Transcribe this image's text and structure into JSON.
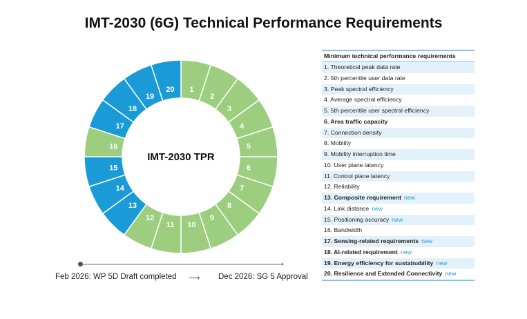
{
  "title": "IMT-2030 (6G) Technical Performance Requirements",
  "donut": {
    "center_label": "IMT-2030 TPR",
    "colors": {
      "existing": "#9dcd7e",
      "new": "#1a9bd7"
    },
    "segments": [
      {
        "n": "1",
        "new": false
      },
      {
        "n": "2",
        "new": false
      },
      {
        "n": "3",
        "new": false
      },
      {
        "n": "4",
        "new": false
      },
      {
        "n": "5",
        "new": false
      },
      {
        "n": "6",
        "new": false
      },
      {
        "n": "7",
        "new": false
      },
      {
        "n": "8",
        "new": false
      },
      {
        "n": "9",
        "new": false
      },
      {
        "n": "10",
        "new": false
      },
      {
        "n": "11",
        "new": false
      },
      {
        "n": "12",
        "new": false
      },
      {
        "n": "13",
        "new": true
      },
      {
        "n": "14",
        "new": true
      },
      {
        "n": "15",
        "new": true
      },
      {
        "n": "16",
        "new": false
      },
      {
        "n": "17",
        "new": true
      },
      {
        "n": "18",
        "new": true
      },
      {
        "n": "19",
        "new": true
      },
      {
        "n": "20",
        "new": true
      }
    ]
  },
  "timeline": {
    "start": "Feb 2026: WP 5D Draft completed",
    "arrow": "⟶",
    "end": "Dec 2026: SG 5 Approval"
  },
  "table": {
    "header": "Minimum technical performance requirements",
    "new_label": "new",
    "rows": [
      {
        "text": "1. Theoretical peak data rate",
        "bold": false,
        "new": false
      },
      {
        "text": "2. 5th percentile user data rate",
        "bold": false,
        "new": false
      },
      {
        "text": "3. Peak spectral efficiency",
        "bold": false,
        "new": false
      },
      {
        "text": "4. Average spectral efficiency",
        "bold": false,
        "new": false
      },
      {
        "text": "5. 5th percentile user spectral efficiency",
        "bold": false,
        "new": false
      },
      {
        "text": "6. Area traffic capacity",
        "bold": true,
        "new": false
      },
      {
        "text": "7. Connection density",
        "bold": false,
        "new": false
      },
      {
        "text": "8. Mobility",
        "bold": false,
        "new": false
      },
      {
        "text": "9. Mobility interruption time",
        "bold": false,
        "new": false
      },
      {
        "text": "10. User plane latency",
        "bold": false,
        "new": false
      },
      {
        "text": "11. Control plane latency",
        "bold": false,
        "new": false
      },
      {
        "text": "12. Reliability",
        "bold": false,
        "new": false
      },
      {
        "text": "13. Composite requirement",
        "bold": true,
        "new": true
      },
      {
        "text": "14. Link distance",
        "bold": false,
        "new": true
      },
      {
        "text": "15. Positioning accuracy",
        "bold": false,
        "new": true
      },
      {
        "text": "16. Bandwidth",
        "bold": false,
        "new": false
      },
      {
        "text": "17. Sensing-related requirements",
        "bold": true,
        "new": true
      },
      {
        "text": "18. AI-related requirement",
        "bold": true,
        "new": true
      },
      {
        "text": "19. Energy efficiency for sustainability",
        "bold": true,
        "new": true
      },
      {
        "text": "20. Resilience and Extended Connectivity",
        "bold": true,
        "new": true
      }
    ]
  }
}
